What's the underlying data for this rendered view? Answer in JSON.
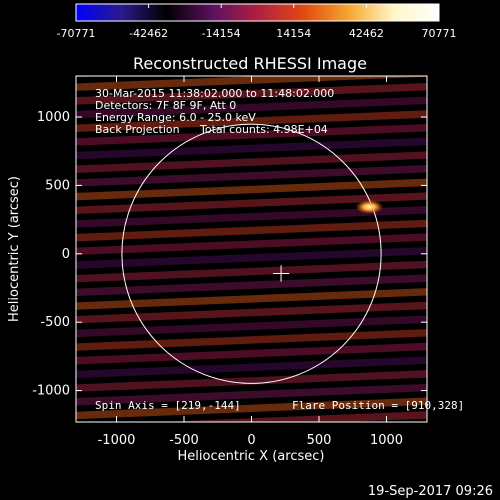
{
  "chart_data": [
    {
      "type": "colorbar",
      "colormap": "RHESSI flame",
      "colors": [
        "#0000ff",
        "#2a1a8a",
        "#000000",
        "#5a1060",
        "#b01f40",
        "#e04812",
        "#f7a52d",
        "#fff7c8",
        "#ffffff"
      ],
      "range": [
        -70771,
        70771
      ],
      "tick_labels": [
        "-70771",
        "-42462",
        "-14154",
        "14154",
        "42462",
        "70771"
      ]
    },
    {
      "type": "heatmap",
      "title": "Reconstructed RHESSI Image",
      "xlabel": "Heliocentric X (arcsec)",
      "ylabel": "Heliocentric Y (arcsec)",
      "xlim": [
        -1300,
        1300
      ],
      "ylim": [
        -1230,
        1300
      ],
      "x_ticks": [
        "-1000",
        "-500",
        "0",
        "500",
        "1000"
      ],
      "y_ticks": [
        "1000",
        "500",
        "0",
        "-500",
        "-1000"
      ],
      "info_lines": [
        "30-Mar-2015 11:38:02.000 to 11:48:02.000",
        "Detectors: 7F 8F 9F, Att 0",
        "Energy Range: 6.0 - 25.0 keV",
        "Back Projection",
        "Total counts: 4.98E+04"
      ],
      "spin_axis": "Spin Axis = [219,-144]",
      "flare_position": "Flare Position = [910,328]",
      "flare_xy": [
        910,
        328
      ],
      "spin_axis_xy": [
        219,
        -144
      ],
      "solar_radius": 960,
      "cross_size": 60,
      "stripe_period": 100,
      "stripe_slope": 0.04,
      "colors": {
        "bright_source": "#ffffcc",
        "limb": "#ffffff"
      }
    }
  ],
  "footer": {
    "timestamp": "19-Sep-2017 09:26"
  }
}
